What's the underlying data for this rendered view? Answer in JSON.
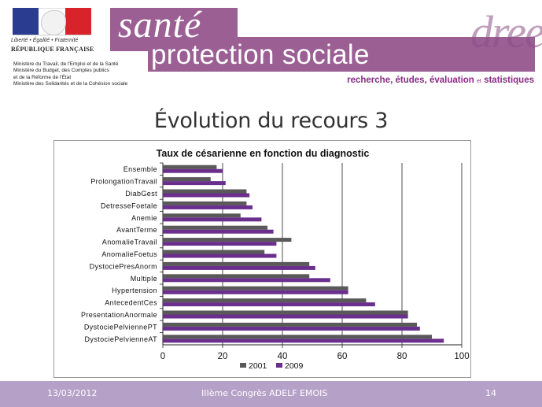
{
  "header": {
    "devise": "Liberté • Égalité • Fraternité",
    "republique": "RÉPUBLIQUE FRANÇAISE",
    "ministeres": [
      "Ministère du Travail, de l'Emploi  et de la Santé",
      "Ministère du Budget, des Comptes publics",
      "et de la Réforme de l'État",
      "Ministère des Solidarités et de la Cohésion sociale"
    ],
    "brand_sante": "santé",
    "brand_protection": "protection sociale",
    "brand_drees": "drees",
    "tagline_part1": "recherche, études, évaluation",
    "tagline_et": "et",
    "tagline_part2": "statistiques"
  },
  "slide_title": "Évolution du recours 3",
  "chart_data": {
    "type": "bar",
    "orientation": "horizontal",
    "title": "Taux de césarienne en fonction du diagnostic",
    "categories": [
      "Ensemble",
      "ProlongationTravail",
      "DiabGest",
      "DetresseFoetale",
      "Anemie",
      "AvantTerme",
      "AnomalieTravail",
      "AnomalieFoetus",
      "DystociePresAnorm",
      "Multiple",
      "Hypertension",
      "AntecedentCes",
      "PresentationAnormale",
      "DystociePelviennePT",
      "DystociePelvienneAT"
    ],
    "series": [
      {
        "name": "2001",
        "color": "#595959",
        "values": [
          18,
          16,
          28,
          28,
          26,
          35,
          43,
          34,
          49,
          49,
          62,
          68,
          82,
          85,
          90
        ]
      },
      {
        "name": "2009",
        "color": "#6a2e8c",
        "values": [
          20,
          21,
          29,
          30,
          33,
          37,
          38,
          38,
          51,
          56,
          62,
          71,
          82,
          86,
          94
        ]
      }
    ],
    "xlim": [
      0,
      100
    ],
    "xticks": [
      0,
      20,
      40,
      60,
      80,
      100
    ],
    "grid": "vertical",
    "legend": "bottom"
  },
  "footer": {
    "date": "13/03/2012",
    "conference": "IIIème Congrès ADELF EMOIS",
    "page": "14"
  }
}
